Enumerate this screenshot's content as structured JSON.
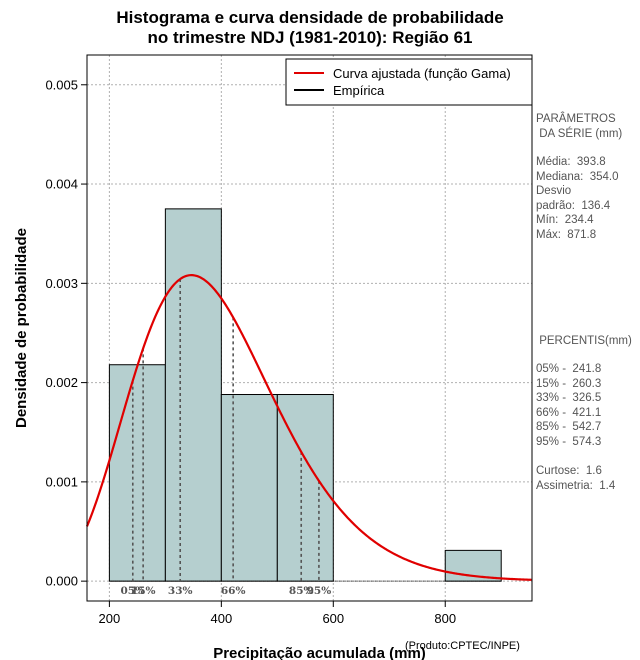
{
  "chart_data": {
    "type": "histogram",
    "title": [
      "Histograma e curva densidade de probabilidade",
      "no trimestre NDJ (1981-2010): Região 61"
    ],
    "xlabel": "Precipitação acumulada (mm)",
    "ylabel": "Densidade de probabilidade",
    "xlim": [
      160,
      955
    ],
    "ylim": [
      -0.0002,
      0.0053
    ],
    "x_ticks": [
      200,
      400,
      600,
      800
    ],
    "y_ticks": [
      0.0,
      0.001,
      0.002,
      0.003,
      0.004,
      0.005
    ],
    "y_tick_labels": [
      "0.000",
      "0.001",
      "0.002",
      "0.003",
      "0.004",
      "0.005"
    ],
    "grid": true,
    "bars": [
      {
        "x0": 200,
        "x1": 300,
        "density": 0.00218
      },
      {
        "x0": 300,
        "x1": 400,
        "density": 0.00375
      },
      {
        "x0": 400,
        "x1": 500,
        "density": 0.00188
      },
      {
        "x0": 500,
        "x1": 600,
        "density": 0.00188
      },
      {
        "x0": 600,
        "x1": 700,
        "density": 0.0
      },
      {
        "x0": 700,
        "x1": 800,
        "density": 0.0
      },
      {
        "x0": 800,
        "x1": 900,
        "density": 0.00031
      }
    ],
    "fitted_curve": {
      "name": "Curva ajustada (função Gama)",
      "color": "#e00000",
      "distribution": "gamma",
      "mean": 393.8,
      "sd": 136.4
    },
    "legend": [
      {
        "label": "Curva ajustada (função Gama)",
        "color": "#e00000"
      },
      {
        "label": "Empírica",
        "color": "#000000"
      }
    ],
    "percentile_lines": [
      {
        "label": "05%",
        "value": 241.8
      },
      {
        "label": "15%",
        "value": 260.3
      },
      {
        "label": "33%",
        "value": 326.5
      },
      {
        "label": "66%",
        "value": 421.1
      },
      {
        "label": "85%",
        "value": 542.7
      },
      {
        "label": "95%",
        "value": 574.3
      }
    ],
    "bar_color": "#b5cfcf"
  },
  "parametros": {
    "heading": "PARÂMETROS\n DA SÉRIE (mm)",
    "body": "Média:  393.8\nMediana:  354.0\nDesvio\npadrão:  136.4\nMín:  234.4\nMáx:  871.8"
  },
  "percentis": {
    "heading": " PERCENTIS(mm)",
    "body": "05% -  241.8\n15% -  260.3\n33% -  326.5\n66% -  421.1\n85% -  542.7\n95% -  574.3",
    "stats": "Curtose:  1.6\nAssimetria:  1.4"
  },
  "credit": "(Produto:CPTEC/INPE)"
}
